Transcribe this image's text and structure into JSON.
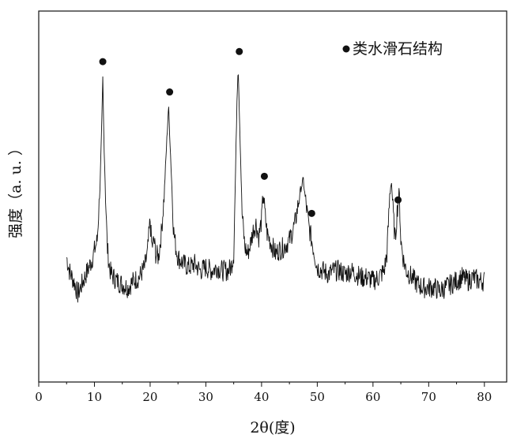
{
  "chart_data": {
    "type": "line",
    "title": "",
    "xlabel": "2θ(度)",
    "ylabel": "强度（a. u. ）",
    "xlim": [
      0,
      84
    ],
    "ylim": [
      0,
      110
    ],
    "xticks": [
      "0",
      "10",
      "20",
      "30",
      "40",
      "50",
      "60",
      "70",
      "80"
    ],
    "yticks_labeled": false,
    "grid": false,
    "legend": {
      "placement": "top-right",
      "marker": "filled-circle",
      "label": "类水滑石结构"
    },
    "series": [
      {
        "x": [
          5,
          5.5,
          6,
          6.5,
          7,
          7.5,
          8,
          8.5,
          9,
          9.5,
          10,
          10.5,
          11,
          11.3,
          11.5,
          11.7,
          12,
          12.3,
          12.7,
          13,
          13.5,
          14,
          15,
          16,
          17,
          18,
          19,
          19.5,
          20,
          20.3,
          20.7,
          21,
          21.5,
          22,
          22.5,
          23,
          23.3,
          23.6,
          23.9,
          24.2,
          24.6,
          25,
          25.5,
          26,
          27,
          28,
          29,
          30,
          31,
          32,
          33,
          34,
          34.5,
          35,
          35.3,
          35.6,
          35.8,
          36.1,
          36.5,
          37,
          37.5,
          38,
          38.5,
          39,
          39.5,
          40,
          40.3,
          40.6,
          41,
          41.5,
          42,
          42.5,
          43,
          44,
          45,
          46,
          46.5,
          47,
          47.5,
          47.8,
          48.2,
          48.5,
          49,
          49.5,
          50,
          51,
          52,
          53,
          54,
          55,
          56,
          57,
          58,
          59,
          60,
          61,
          62,
          62.5,
          63,
          63.3,
          63.7,
          64,
          64.3,
          64.7,
          65,
          65.5,
          66,
          67,
          68,
          69,
          70,
          71,
          72,
          73,
          74,
          75,
          76,
          77,
          78,
          79,
          80
        ],
        "y": [
          37,
          33,
          31,
          29,
          26,
          28,
          30,
          32,
          34,
          36,
          39,
          42,
          58,
          75,
          90,
          72,
          55,
          40,
          34,
          32,
          31,
          30,
          29,
          28,
          30,
          31,
          34,
          38,
          48,
          40,
          42,
          38,
          37,
          44,
          55,
          72,
          82,
          70,
          58,
          45,
          40,
          37,
          36,
          35,
          34,
          35,
          33,
          34,
          33,
          34,
          33,
          33,
          34,
          38,
          60,
          85,
          94,
          75,
          50,
          40,
          38,
          41,
          45,
          47,
          43,
          48,
          56,
          50,
          44,
          42,
          40,
          38,
          39,
          40,
          42,
          47,
          52,
          57,
          60,
          55,
          50,
          46,
          42,
          38,
          34,
          33,
          32,
          33,
          33,
          32,
          33,
          32,
          31,
          31,
          30,
          31,
          33,
          38,
          55,
          60,
          48,
          42,
          50,
          57,
          42,
          36,
          33,
          31,
          29,
          28,
          28,
          28,
          27,
          28,
          29,
          30,
          31,
          30,
          31,
          30,
          30
        ]
      }
    ],
    "annotations": [
      {
        "x": 11.5,
        "y": 95
      },
      {
        "x": 23.5,
        "y": 86
      },
      {
        "x": 36,
        "y": 98
      },
      {
        "x": 40.5,
        "y": 61
      },
      {
        "x": 49,
        "y": 50
      },
      {
        "x": 64.5,
        "y": 54
      }
    ]
  }
}
